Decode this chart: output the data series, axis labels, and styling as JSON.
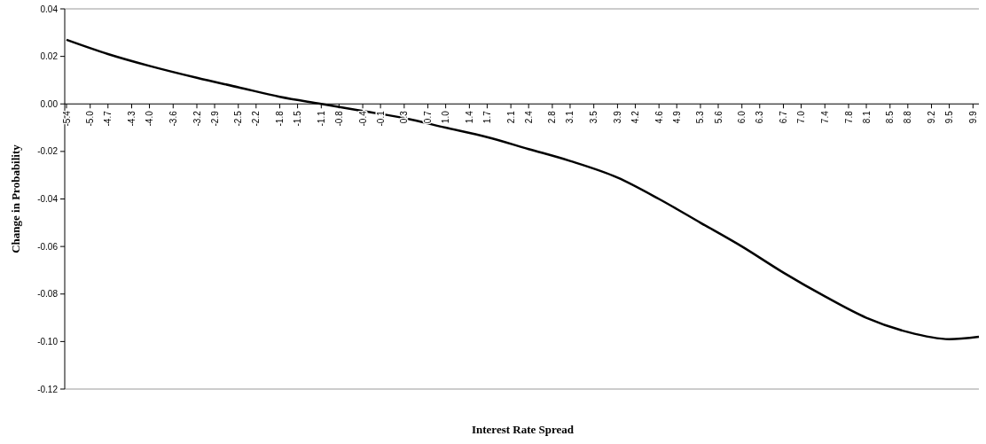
{
  "chart_data": {
    "type": "line",
    "xlabel": "Interest Rate Spread",
    "ylabel": "Change in Probability",
    "xlim": [
      -5.4,
      10.0
    ],
    "ylim": [
      -0.12,
      0.04
    ],
    "yticks": [
      {
        "value": -0.12,
        "label": "-0.12"
      },
      {
        "value": -0.1,
        "label": "-0.10"
      },
      {
        "value": -0.08,
        "label": "-0.08"
      },
      {
        "value": -0.06,
        "label": "-0.06"
      },
      {
        "value": -0.04,
        "label": "-0.04"
      },
      {
        "value": -0.02,
        "label": "-0.02"
      },
      {
        "value": 0,
        "label": "0.00"
      },
      {
        "value": 0.02,
        "label": "0.02"
      },
      {
        "value": 0.04,
        "label": "0.04"
      }
    ],
    "xticks": [
      {
        "value": -5.4,
        "label": "-5.4"
      },
      {
        "value": -5.0,
        "label": "-5.0"
      },
      {
        "value": -4.7,
        "label": "-4.7"
      },
      {
        "value": -4.3,
        "label": "-4.3"
      },
      {
        "value": -4.0,
        "label": "-4.0"
      },
      {
        "value": -3.6,
        "label": "-3.6"
      },
      {
        "value": -3.2,
        "label": "-3.2"
      },
      {
        "value": -2.9,
        "label": "-2.9"
      },
      {
        "value": -2.5,
        "label": "-2.5"
      },
      {
        "value": -2.2,
        "label": "-2.2"
      },
      {
        "value": -1.8,
        "label": "-1.8"
      },
      {
        "value": -1.5,
        "label": "-1.5"
      },
      {
        "value": -1.1,
        "label": "-1.1"
      },
      {
        "value": -0.8,
        "label": "-0.8"
      },
      {
        "value": -0.4,
        "label": "-0.4"
      },
      {
        "value": -0.1,
        "label": "-0.1"
      },
      {
        "value": 0.3,
        "label": "0.3"
      },
      {
        "value": 0.7,
        "label": "0.7"
      },
      {
        "value": 1.0,
        "label": "1.0"
      },
      {
        "value": 1.4,
        "label": "1.4"
      },
      {
        "value": 1.7,
        "label": "1.7"
      },
      {
        "value": 2.1,
        "label": "2.1"
      },
      {
        "value": 2.4,
        "label": "2.4"
      },
      {
        "value": 2.8,
        "label": "2.8"
      },
      {
        "value": 3.1,
        "label": "3.1"
      },
      {
        "value": 3.5,
        "label": "3.5"
      },
      {
        "value": 3.9,
        "label": "3.9"
      },
      {
        "value": 4.2,
        "label": "4.2"
      },
      {
        "value": 4.6,
        "label": "4.6"
      },
      {
        "value": 4.9,
        "label": "4.9"
      },
      {
        "value": 5.3,
        "label": "5.3"
      },
      {
        "value": 5.6,
        "label": "5.6"
      },
      {
        "value": 6.0,
        "label": "6.0"
      },
      {
        "value": 6.3,
        "label": "6.3"
      },
      {
        "value": 6.7,
        "label": "6.7"
      },
      {
        "value": 7.0,
        "label": "7.0"
      },
      {
        "value": 7.4,
        "label": "7.4"
      },
      {
        "value": 7.8,
        "label": "7.8"
      },
      {
        "value": 8.1,
        "label": "8.1"
      },
      {
        "value": 8.5,
        "label": "8.5"
      },
      {
        "value": 8.8,
        "label": "8.8"
      },
      {
        "value": 9.2,
        "label": "9.2"
      },
      {
        "value": 9.5,
        "label": "9.5"
      },
      {
        "value": 9.9,
        "label": "9.9"
      }
    ],
    "grid": false,
    "marker": "none",
    "line_style": "solid",
    "series": [
      {
        "color": "#000000",
        "x": [
          -5.4,
          -4.7,
          -4.0,
          -3.2,
          -2.5,
          -1.8,
          -1.1,
          -0.4,
          0.3,
          1.0,
          1.7,
          2.4,
          3.1,
          3.9,
          4.6,
          5.3,
          6.0,
          6.7,
          7.4,
          8.1,
          8.8,
          9.5,
          10.0
        ],
        "values": [
          0.027,
          0.021,
          0.016,
          0.011,
          0.007,
          0.003,
          0.0,
          -0.003,
          -0.006,
          -0.01,
          -0.014,
          -0.019,
          -0.024,
          -0.031,
          -0.04,
          -0.05,
          -0.06,
          -0.071,
          -0.081,
          -0.09,
          -0.096,
          -0.099,
          -0.098
        ]
      }
    ]
  }
}
